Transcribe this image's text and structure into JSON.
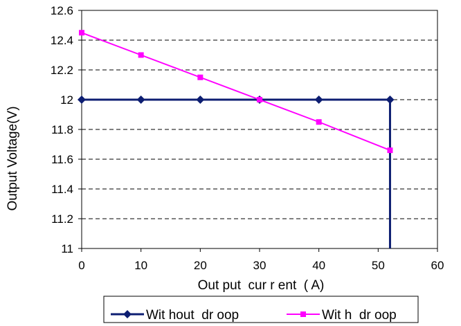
{
  "chart_data": {
    "type": "line",
    "title": "",
    "xlabel": "Out put  cur r ent  ( A)",
    "ylabel": "Output Voltage(V)",
    "xlim": [
      0,
      60
    ],
    "ylim": [
      11,
      12.6
    ],
    "x_ticks": [
      "0",
      "10",
      "20",
      "30",
      "40",
      "50",
      "60"
    ],
    "y_ticks": [
      "11",
      "11.2",
      "11.4",
      "11.6",
      "11.8",
      "12",
      "12.2",
      "12.4",
      "12.6"
    ],
    "grid": "horizontal dashed",
    "legend_position": "bottom",
    "series": [
      {
        "name": "Wit hout  dr oop",
        "color": "#0d1e72",
        "marker": "diamond",
        "x": [
          0,
          10,
          20,
          30,
          40,
          52,
          52
        ],
        "y": [
          12,
          12,
          12,
          12,
          12,
          12,
          11
        ],
        "marker_count": 6
      },
      {
        "name": "Wit h  dr oop",
        "color": "#ff00ff",
        "marker": "square",
        "x": [
          0,
          10,
          20,
          30,
          40,
          52
        ],
        "y": [
          12.45,
          12.3,
          12.15,
          12,
          11.85,
          11.66
        ],
        "marker_count": 6
      }
    ]
  }
}
